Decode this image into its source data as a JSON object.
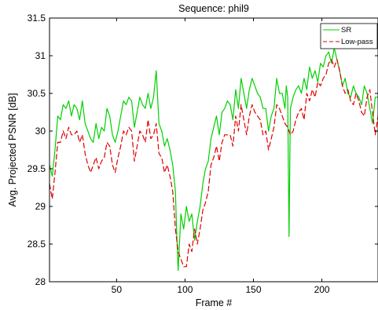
{
  "chart_data": {
    "type": "line",
    "title": "Sequence: phil9",
    "xlabel": "Frame #",
    "ylabel": "Avg. Projected PSNR [dB]",
    "xlim": [
      1,
      241
    ],
    "ylim": [
      28,
      31.5
    ],
    "xticks": [
      50,
      100,
      150,
      200
    ],
    "yticks": [
      28,
      28.5,
      29,
      29.5,
      30,
      30.5,
      31,
      31.5
    ],
    "grid": false,
    "legend_position": "top-right",
    "series": [
      {
        "name": "SR",
        "color": "#00d000",
        "style": "solid",
        "x": [
          1,
          3,
          5,
          7,
          9,
          11,
          13,
          15,
          17,
          19,
          21,
          23,
          25,
          27,
          29,
          31,
          33,
          35,
          37,
          39,
          41,
          43,
          45,
          47,
          49,
          51,
          53,
          55,
          57,
          59,
          61,
          63,
          65,
          67,
          69,
          71,
          73,
          75,
          77,
          79,
          81,
          83,
          85,
          87,
          89,
          91,
          93,
          94,
          95,
          97,
          99,
          101,
          103,
          105,
          107,
          109,
          111,
          113,
          115,
          117,
          119,
          121,
          123,
          125,
          127,
          129,
          131,
          133,
          135,
          137,
          139,
          141,
          143,
          145,
          147,
          149,
          151,
          153,
          155,
          157,
          159,
          161,
          163,
          165,
          167,
          169,
          171,
          173,
          174,
          175,
          176,
          177,
          179,
          181,
          183,
          185,
          187,
          189,
          191,
          193,
          195,
          197,
          199,
          201,
          203,
          205,
          207,
          209,
          211,
          213,
          215,
          217,
          219,
          221,
          223,
          225,
          227,
          229,
          231,
          233,
          235,
          237,
          239,
          241
        ],
        "values": [
          29.55,
          29.4,
          29.75,
          30.2,
          30.15,
          30.35,
          30.3,
          30.4,
          30.2,
          30.35,
          30.3,
          30.15,
          30.4,
          30.1,
          30.0,
          29.9,
          29.85,
          30.1,
          29.9,
          30.05,
          30.0,
          30.3,
          30.2,
          29.95,
          29.85,
          30.0,
          30.2,
          30.4,
          30.35,
          30.45,
          30.4,
          30.05,
          30.25,
          30.45,
          30.35,
          30.3,
          30.5,
          30.3,
          30.45,
          30.8,
          30.1,
          30.0,
          29.8,
          29.9,
          29.75,
          29.55,
          29.2,
          28.6,
          28.15,
          28.9,
          28.7,
          29.0,
          28.8,
          28.9,
          28.55,
          28.8,
          29.0,
          29.3,
          29.5,
          29.6,
          29.9,
          30.05,
          30.2,
          29.95,
          30.25,
          30.3,
          30.4,
          30.35,
          30.15,
          30.55,
          30.3,
          30.7,
          30.5,
          30.3,
          30.55,
          30.7,
          30.6,
          30.5,
          30.45,
          30.3,
          30.3,
          30.0,
          30.2,
          30.3,
          30.7,
          30.5,
          30.5,
          30.3,
          30.6,
          30.45,
          28.6,
          30.3,
          30.45,
          30.55,
          30.6,
          30.5,
          30.7,
          30.55,
          30.85,
          30.7,
          30.8,
          30.65,
          30.9,
          30.85,
          31.0,
          31.05,
          30.9,
          31.1,
          30.95,
          30.8,
          30.6,
          30.7,
          30.5,
          30.45,
          30.6,
          30.5,
          30.45,
          30.35,
          30.6,
          30.5,
          30.3,
          30.1,
          30.45,
          30.45
        ]
      },
      {
        "name": "Low-pass",
        "color": "#dd0000",
        "style": "dashed",
        "x": [
          1,
          3,
          5,
          7,
          9,
          11,
          13,
          15,
          17,
          19,
          21,
          23,
          25,
          27,
          29,
          31,
          33,
          35,
          37,
          39,
          41,
          43,
          45,
          47,
          49,
          51,
          53,
          55,
          57,
          59,
          61,
          63,
          65,
          67,
          69,
          71,
          73,
          75,
          77,
          79,
          81,
          83,
          85,
          87,
          89,
          91,
          93,
          95,
          97,
          99,
          101,
          103,
          105,
          107,
          109,
          111,
          113,
          115,
          117,
          119,
          121,
          123,
          125,
          127,
          129,
          131,
          133,
          135,
          137,
          139,
          141,
          143,
          145,
          147,
          149,
          151,
          153,
          155,
          157,
          159,
          161,
          163,
          165,
          167,
          169,
          171,
          173,
          175,
          177,
          179,
          181,
          183,
          185,
          187,
          189,
          191,
          193,
          195,
          197,
          199,
          201,
          203,
          205,
          207,
          209,
          211,
          213,
          215,
          217,
          219,
          221,
          223,
          225,
          227,
          229,
          231,
          233,
          235,
          237,
          239,
          241
        ],
        "values": [
          29.3,
          29.1,
          29.45,
          29.85,
          29.85,
          30.0,
          29.9,
          30.05,
          29.95,
          29.95,
          30.0,
          29.85,
          29.95,
          29.7,
          29.55,
          29.45,
          29.55,
          29.65,
          29.5,
          29.6,
          29.65,
          29.85,
          29.8,
          29.55,
          29.45,
          29.65,
          29.8,
          30.0,
          29.95,
          30.05,
          30.0,
          29.6,
          29.8,
          30.0,
          29.95,
          29.85,
          30.15,
          29.9,
          29.95,
          30.1,
          29.7,
          29.65,
          29.45,
          29.55,
          29.4,
          29.2,
          28.7,
          28.4,
          28.3,
          28.2,
          28.2,
          28.5,
          28.4,
          28.7,
          28.5,
          28.7,
          28.95,
          29.05,
          29.2,
          29.55,
          29.65,
          29.8,
          29.6,
          29.85,
          29.95,
          29.95,
          29.95,
          29.8,
          30.2,
          30.0,
          30.35,
          30.15,
          29.95,
          30.2,
          30.35,
          30.25,
          30.2,
          30.15,
          29.95,
          30.0,
          29.75,
          29.9,
          30.05,
          30.35,
          30.3,
          30.2,
          30.1,
          30.05,
          29.95,
          30.0,
          30.15,
          30.25,
          30.3,
          30.15,
          30.5,
          30.4,
          30.55,
          30.45,
          30.65,
          30.6,
          30.7,
          30.75,
          30.9,
          30.95,
          30.85,
          30.95,
          30.8,
          30.6,
          30.5,
          30.55,
          30.4,
          30.35,
          30.5,
          30.4,
          30.25,
          30.2,
          30.45,
          30.55,
          30.25,
          29.95,
          30.2
        ]
      }
    ]
  }
}
